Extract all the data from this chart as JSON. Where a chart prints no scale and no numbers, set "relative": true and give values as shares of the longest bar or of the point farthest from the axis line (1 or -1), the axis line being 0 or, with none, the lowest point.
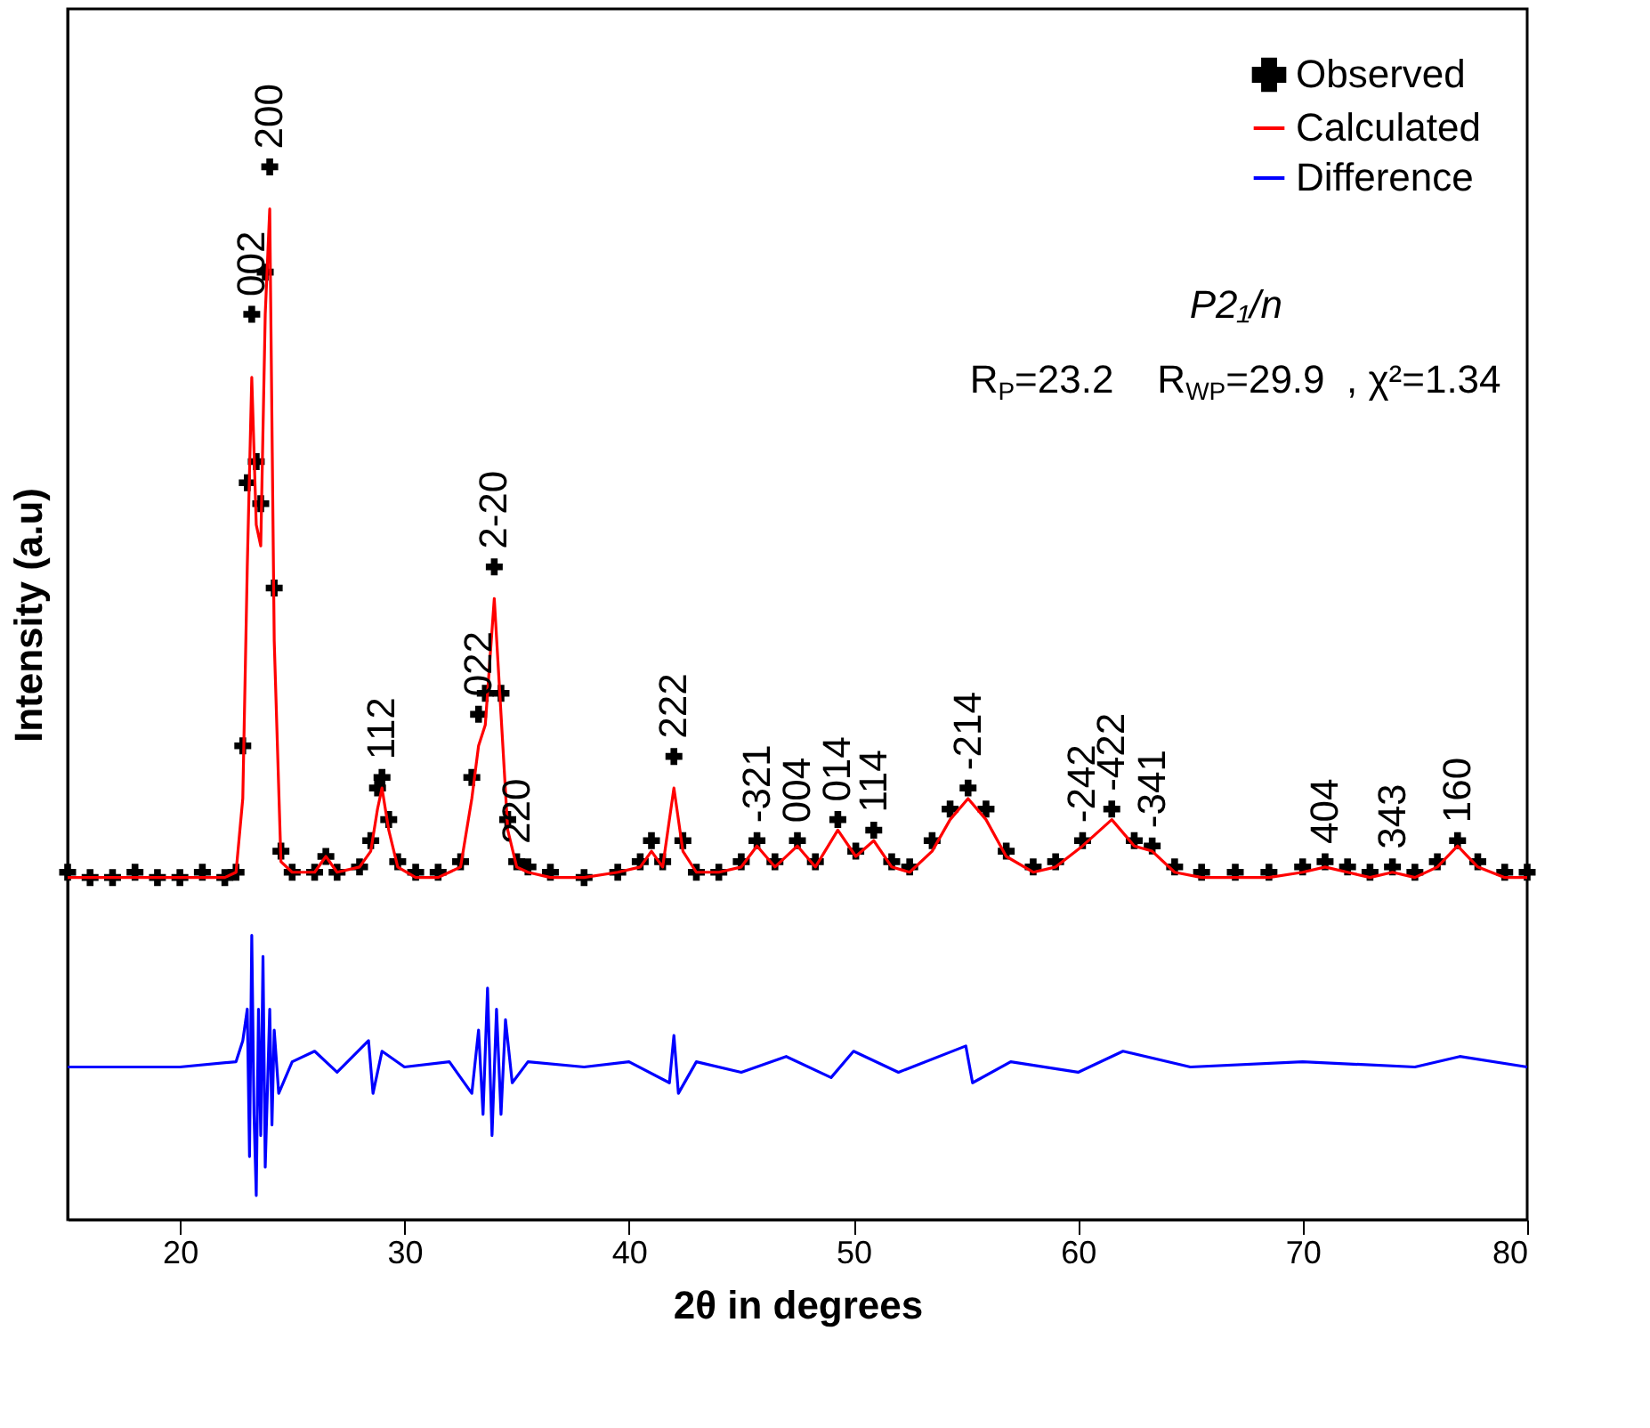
{
  "chart_data": {
    "type": "scatter",
    "relative": true,
    "xlabel": "2θ in degrees",
    "ylabel": "Intensity (a.u)",
    "xlim": [
      15,
      80
    ],
    "xticks": [
      20,
      30,
      40,
      50,
      60,
      70,
      80
    ],
    "tick_labels": "x",
    "legend": "top right",
    "grid": false,
    "x": [
      15,
      16,
      17,
      18,
      19,
      20,
      21,
      22,
      22.5,
      22.8,
      23.0,
      23.2,
      23.4,
      23.6,
      23.8,
      24.0,
      24.2,
      24.5,
      25,
      26,
      26.5,
      27,
      28,
      28.5,
      28.8,
      29.0,
      29.3,
      29.7,
      30.5,
      31.5,
      32.5,
      33.0,
      33.3,
      33.6,
      34.0,
      34.3,
      34.6,
      35.0,
      35.5,
      36.5,
      38,
      39.5,
      40.5,
      41.0,
      41.5,
      42.0,
      42.4,
      43,
      44,
      45,
      45.7,
      46.5,
      47.5,
      48.3,
      49.3,
      50.1,
      50.9,
      51.7,
      52.5,
      53.5,
      54.3,
      55.1,
      55.9,
      56.8,
      58,
      59,
      60.2,
      61.5,
      62.5,
      63.3,
      64.3,
      65.5,
      67,
      68.5,
      70,
      71,
      72,
      73,
      74,
      75,
      76,
      76.9,
      77.8,
      79,
      80
    ],
    "series": [
      {
        "name": "Observed",
        "marker": "cross",
        "color": "#000000",
        "values": [
          0.33,
          0.325,
          0.325,
          0.33,
          0.325,
          0.325,
          0.33,
          0.325,
          0.33,
          0.45,
          0.7,
          0.86,
          0.72,
          0.68,
          0.9,
          1.0,
          0.6,
          0.35,
          0.33,
          0.33,
          0.345,
          0.33,
          0.335,
          0.36,
          0.41,
          0.42,
          0.38,
          0.34,
          0.33,
          0.33,
          0.34,
          0.42,
          0.48,
          0.5,
          0.62,
          0.5,
          0.38,
          0.34,
          0.335,
          0.33,
          0.325,
          0.33,
          0.34,
          0.36,
          0.34,
          0.44,
          0.36,
          0.33,
          0.33,
          0.34,
          0.36,
          0.34,
          0.36,
          0.34,
          0.38,
          0.35,
          0.37,
          0.34,
          0.335,
          0.36,
          0.39,
          0.41,
          0.39,
          0.35,
          0.335,
          0.34,
          0.36,
          0.39,
          0.36,
          0.355,
          0.335,
          0.33,
          0.33,
          0.33,
          0.335,
          0.34,
          0.335,
          0.33,
          0.335,
          0.33,
          0.34,
          0.36,
          0.34,
          0.33,
          0.33
        ]
      },
      {
        "name": "Calculated",
        "type": "line",
        "line_style": "solid",
        "color": "#ff0000",
        "values": [
          0.325,
          0.325,
          0.325,
          0.325,
          0.325,
          0.325,
          0.325,
          0.325,
          0.33,
          0.4,
          0.62,
          0.8,
          0.66,
          0.64,
          0.86,
          0.96,
          0.55,
          0.34,
          0.33,
          0.33,
          0.345,
          0.33,
          0.335,
          0.35,
          0.39,
          0.41,
          0.37,
          0.335,
          0.325,
          0.325,
          0.335,
          0.4,
          0.45,
          0.47,
          0.59,
          0.48,
          0.37,
          0.335,
          0.33,
          0.325,
          0.325,
          0.33,
          0.335,
          0.35,
          0.335,
          0.41,
          0.35,
          0.33,
          0.33,
          0.335,
          0.355,
          0.335,
          0.355,
          0.335,
          0.37,
          0.345,
          0.36,
          0.335,
          0.33,
          0.35,
          0.38,
          0.4,
          0.38,
          0.345,
          0.33,
          0.335,
          0.355,
          0.38,
          0.355,
          0.35,
          0.33,
          0.325,
          0.325,
          0.325,
          0.33,
          0.335,
          0.33,
          0.325,
          0.33,
          0.325,
          0.335,
          0.355,
          0.335,
          0.325,
          0.325
        ]
      },
      {
        "name": "Difference",
        "type": "line",
        "line_style": "solid",
        "color": "#0000ff",
        "x": [
          15,
          20,
          22.5,
          22.8,
          23.0,
          23.1,
          23.2,
          23.3,
          23.4,
          23.5,
          23.6,
          23.7,
          23.8,
          24.0,
          24.1,
          24.2,
          24.4,
          25,
          26,
          27,
          28.4,
          28.6,
          29,
          30,
          32,
          33,
          33.3,
          33.5,
          33.7,
          33.9,
          34.1,
          34.3,
          34.5,
          34.8,
          35.5,
          38,
          40,
          41.8,
          42.0,
          42.2,
          43,
          45,
          47,
          49,
          50,
          52,
          55,
          55.3,
          57,
          60,
          62,
          65,
          70,
          75,
          77,
          80
        ],
        "values": [
          0.145,
          0.145,
          0.15,
          0.17,
          0.2,
          0.06,
          0.27,
          0.1,
          0.023,
          0.2,
          0.08,
          0.25,
          0.05,
          0.2,
          0.09,
          0.18,
          0.12,
          0.15,
          0.16,
          0.14,
          0.17,
          0.12,
          0.16,
          0.145,
          0.15,
          0.12,
          0.18,
          0.1,
          0.22,
          0.08,
          0.2,
          0.1,
          0.19,
          0.13,
          0.15,
          0.145,
          0.15,
          0.13,
          0.175,
          0.12,
          0.15,
          0.14,
          0.155,
          0.135,
          0.16,
          0.14,
          0.165,
          0.13,
          0.15,
          0.14,
          0.16,
          0.145,
          0.15,
          0.145,
          0.155,
          0.145
        ]
      }
    ],
    "annotations": [
      {
        "text": "002",
        "x": 23.2,
        "y": 0.86
      },
      {
        "text": "200",
        "x": 24.0,
        "y": 1.0
      },
      {
        "text": "112",
        "x": 29.0,
        "y": 0.42
      },
      {
        "text": "022",
        "x": 33.3,
        "y": 0.48
      },
      {
        "text": "2-20",
        "x": 34.0,
        "y": 0.62
      },
      {
        "text": "220",
        "x": 35.0,
        "y": 0.34
      },
      {
        "text": "222",
        "x": 42.0,
        "y": 0.44
      },
      {
        "text": "-321",
        "x": 45.7,
        "y": 0.36
      },
      {
        "text": "004",
        "x": 47.5,
        "y": 0.36
      },
      {
        "text": "014",
        "x": 49.3,
        "y": 0.38
      },
      {
        "text": "114",
        "x": 50.9,
        "y": 0.37
      },
      {
        "text": "-214",
        "x": 55.1,
        "y": 0.41
      },
      {
        "text": "-242",
        "x": 60.2,
        "y": 0.36
      },
      {
        "text": "-422",
        "x": 61.5,
        "y": 0.39
      },
      {
        "text": "-341",
        "x": 63.3,
        "y": 0.355
      },
      {
        "text": "404",
        "x": 71,
        "y": 0.34
      },
      {
        "text": "343",
        "x": 74,
        "y": 0.335
      },
      {
        "text": "160",
        "x": 76.9,
        "y": 0.36
      },
      "P2₁/n",
      "R$_{P}$=23.2    R$_{WP}$=29.9  , χ²=1.34"
    ]
  }
}
